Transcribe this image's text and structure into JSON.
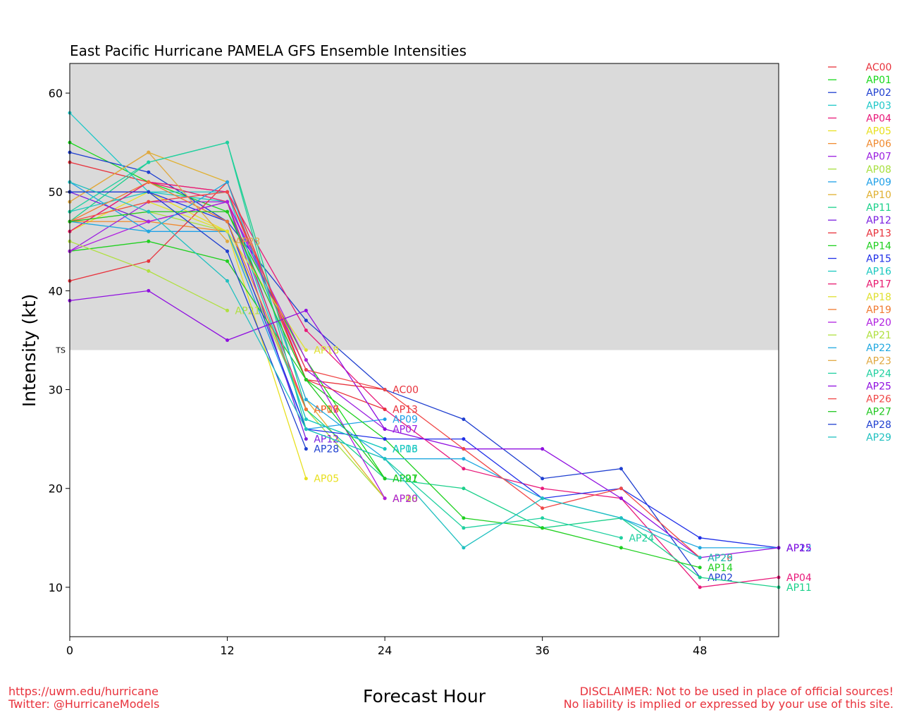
{
  "footer": {
    "url": "https://uwm.edu/hurricane",
    "twitter": "Twitter: @HurricaneModels",
    "disclaimer_line1": "DISCLAIMER: Not to be used in place of official sources!",
    "disclaimer_line2": "No liability is implied or expressed by your use of this site."
  },
  "chart_data": {
    "type": "line",
    "title": "East Pacific Hurricane PAMELA GFS Ensemble Intensities",
    "xlabel": "Forecast Hour",
    "ylabel": "Intensity (kt)",
    "xlim": [
      0,
      54
    ],
    "ylim": [
      5,
      63
    ],
    "xticks": [
      0,
      12,
      24,
      36,
      48
    ],
    "yticks": [
      10,
      20,
      30,
      40,
      50,
      60
    ],
    "ts_threshold": 34,
    "ts_label": "TS",
    "shade_color": "#dadada",
    "legend_position": "right",
    "series": [
      {
        "name": "AC00",
        "color": "#e8323c",
        "x": [
          0,
          6,
          12,
          18,
          24
        ],
        "y": [
          53,
          51,
          50,
          31,
          30
        ]
      },
      {
        "name": "AP01",
        "color": "#17d81a",
        "x": [
          0,
          6,
          12,
          18,
          24
        ],
        "y": [
          55,
          51,
          48,
          33,
          21
        ]
      },
      {
        "name": "AP02",
        "color": "#1f3fd0",
        "x": [
          0,
          6,
          12,
          18,
          24,
          30,
          36,
          42,
          48
        ],
        "y": [
          54,
          52,
          47,
          37,
          30,
          27,
          21,
          22,
          11
        ]
      },
      {
        "name": "AP03",
        "color": "#1fc8c8",
        "x": [
          0,
          6,
          12,
          18,
          24
        ],
        "y": [
          58,
          50,
          50,
          27,
          24
        ]
      },
      {
        "name": "AP04",
        "color": "#e81a7a",
        "x": [
          0,
          6,
          12,
          18,
          24,
          30,
          36,
          42,
          48,
          54
        ],
        "y": [
          46,
          51,
          50,
          36,
          28,
          22,
          20,
          19,
          10,
          11
        ]
      },
      {
        "name": "AP05",
        "color": "#e8e020",
        "x": [
          0,
          6,
          12,
          18
        ],
        "y": [
          46,
          50,
          46,
          21
        ]
      },
      {
        "name": "AP06",
        "color": "#f08a30",
        "x": [
          0,
          6,
          12,
          18
        ],
        "y": [
          47,
          47,
          46,
          28
        ]
      },
      {
        "name": "AP07",
        "color": "#9b1fe0",
        "x": [
          0,
          6,
          12,
          18,
          24
        ],
        "y": [
          44,
          49,
          49,
          32,
          26
        ]
      },
      {
        "name": "AP08",
        "color": "#a8e040",
        "x": [
          0,
          6,
          12,
          18,
          24
        ],
        "y": [
          47,
          48,
          46,
          28,
          19
        ]
      },
      {
        "name": "AP09",
        "color": "#1fa0e8",
        "x": [
          0,
          6,
          12,
          18,
          24
        ],
        "y": [
          51,
          46,
          46,
          26,
          27
        ]
      },
      {
        "name": "AP10",
        "color": "#e0b030",
        "x": [
          0,
          6,
          12,
          18,
          24
        ],
        "y": [
          49,
          54,
          51,
          29,
          19
        ]
      },
      {
        "name": "AP11",
        "color": "#1ad08a",
        "x": [
          0,
          6,
          12,
          18,
          24,
          30,
          36,
          42,
          48,
          54
        ],
        "y": [
          47,
          53,
          55,
          28,
          21,
          20,
          16,
          17,
          11,
          10
        ]
      },
      {
        "name": "AP12",
        "color": "#7a1fe0",
        "x": [
          0,
          6,
          12,
          18
        ],
        "y": [
          50,
          47,
          49,
          25
        ]
      },
      {
        "name": "AP13",
        "color": "#e8323c",
        "x": [
          0,
          6,
          12,
          18,
          24
        ],
        "y": [
          41,
          43,
          51,
          31,
          28
        ]
      },
      {
        "name": "AP14",
        "color": "#20d020",
        "x": [
          0,
          6,
          12,
          18,
          24,
          30,
          36,
          42,
          48
        ],
        "y": [
          44,
          45,
          43,
          31,
          25,
          17,
          16,
          14,
          12
        ]
      },
      {
        "name": "AP15",
        "color": "#2030e8",
        "x": [
          0,
          6,
          12,
          18,
          24,
          30,
          36,
          42,
          48,
          54
        ],
        "y": [
          50,
          50,
          47,
          26,
          25,
          25,
          19,
          20,
          15,
          14
        ]
      },
      {
        "name": "AP16",
        "color": "#1ac8c0",
        "x": [
          0,
          6,
          12,
          18,
          24
        ],
        "y": [
          48,
          50,
          49,
          27,
          24
        ]
      },
      {
        "name": "AP17",
        "color": "#e81a70",
        "x": [
          0,
          6,
          12,
          18
        ],
        "y": [
          46,
          51,
          49,
          28
        ]
      },
      {
        "name": "AP18",
        "color": "#e0e030",
        "x": [
          0,
          6,
          12,
          18
        ],
        "y": [
          47,
          49,
          46,
          34
        ]
      },
      {
        "name": "AP19",
        "color": "#f07a30",
        "x": [
          0,
          6,
          12,
          18
        ],
        "y": [
          47,
          51,
          47,
          28
        ]
      },
      {
        "name": "AP20",
        "color": "#b01fe0",
        "x": [
          0,
          6,
          12,
          18,
          24
        ],
        "y": [
          44,
          47,
          49,
          33,
          19
        ]
      },
      {
        "name": "AP21",
        "color": "#b0e040",
        "x": [
          0,
          6,
          12
        ],
        "y": [
          45,
          42,
          38
        ]
      },
      {
        "name": "AP22",
        "color": "#20a8e0",
        "x": [
          0,
          6,
          12,
          18,
          24,
          30,
          36,
          42,
          48,
          54
        ],
        "y": [
          47,
          46,
          51,
          29,
          23,
          23,
          19,
          17,
          14,
          14
        ]
      },
      {
        "name": "AP23",
        "color": "#e0a840",
        "x": [
          0,
          6,
          12
        ],
        "y": [
          49,
          54,
          45
        ]
      },
      {
        "name": "AP24",
        "color": "#20d0a0",
        "x": [
          0,
          6,
          12,
          18,
          24,
          30,
          36,
          42
        ],
        "y": [
          48,
          53,
          55,
          26,
          23,
          16,
          17,
          15
        ]
      },
      {
        "name": "AP25",
        "color": "#9010e0",
        "x": [
          0,
          6,
          12,
          18,
          24,
          30,
          36,
          42,
          48,
          54
        ],
        "y": [
          39,
          40,
          35,
          38,
          26,
          24,
          24,
          19,
          13,
          14
        ]
      },
      {
        "name": "AP26",
        "color": "#f04848",
        "x": [
          0,
          6,
          12,
          18,
          24,
          30,
          36,
          42,
          48
        ],
        "y": [
          47,
          49,
          50,
          32,
          30,
          24,
          18,
          20,
          13
        ]
      },
      {
        "name": "AP27",
        "color": "#20c820",
        "x": [
          0,
          6,
          12,
          18,
          24
        ],
        "y": [
          47,
          48,
          48,
          31,
          21
        ]
      },
      {
        "name": "AP28",
        "color": "#2040d0",
        "x": [
          0,
          6,
          12,
          18
        ],
        "y": [
          50,
          50,
          44,
          24
        ]
      },
      {
        "name": "AP29",
        "color": "#20c0c0",
        "x": [
          0,
          6,
          12,
          18,
          24,
          30,
          36,
          42,
          48
        ],
        "y": [
          51,
          48,
          41,
          26,
          23,
          14,
          19,
          17,
          13
        ]
      }
    ]
  }
}
